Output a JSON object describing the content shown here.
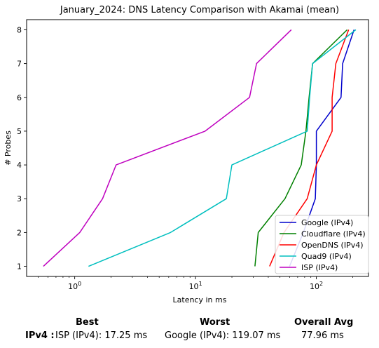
{
  "chart_data": {
    "type": "line",
    "title": "January_2024: DNS Latency Comparison with Akamai (mean)",
    "xlabel": "Latency in ms",
    "ylabel": "# Probes",
    "xscale": "log",
    "xlim": [
      0.4,
      270
    ],
    "ylim": [
      0.7,
      8.3
    ],
    "x_ticks": [
      1,
      10,
      100
    ],
    "x_tick_labels": [
      "10^0",
      "10^1",
      "10^2"
    ],
    "y_ticks": [
      1,
      2,
      3,
      4,
      5,
      6,
      7,
      8
    ],
    "y_tick_labels": [
      "1",
      "2",
      "3",
      "4",
      "5",
      "6",
      "7",
      "8"
    ],
    "grid": false,
    "legend_position": "lower-right",
    "series": [
      {
        "name": "Google (IPv4)",
        "color": "#0000cc",
        "points": [
          [
            60,
            1
          ],
          [
            78,
            2
          ],
          [
            98,
            3
          ],
          [
            100,
            4
          ],
          [
            100,
            5
          ],
          [
            160,
            6
          ],
          [
            165,
            7
          ],
          [
            205,
            8
          ]
        ]
      },
      {
        "name": "Cloudflare (IPv4)",
        "color": "#008000",
        "points": [
          [
            31,
            1
          ],
          [
            33,
            2
          ],
          [
            55,
            3
          ],
          [
            75,
            4
          ],
          [
            82,
            5
          ],
          [
            87,
            6
          ],
          [
            93,
            7
          ],
          [
            180,
            8
          ]
        ]
      },
      {
        "name": "OpenDNS (IPv4)",
        "color": "#ff0000",
        "points": [
          [
            41,
            1
          ],
          [
            54,
            2
          ],
          [
            84,
            3
          ],
          [
            100,
            4
          ],
          [
            135,
            5
          ],
          [
            135,
            6
          ],
          [
            145,
            7
          ],
          [
            185,
            8
          ]
        ]
      },
      {
        "name": "Quad9 (IPv4)",
        "color": "#00bfbf",
        "points": [
          [
            1.3,
            1
          ],
          [
            6.2,
            2
          ],
          [
            18,
            3
          ],
          [
            20,
            4
          ],
          [
            84,
            5
          ],
          [
            88,
            6
          ],
          [
            93,
            7
          ],
          [
            212,
            8
          ]
        ]
      },
      {
        "name": "ISP (IPv4)",
        "color": "#bf00bf",
        "points": [
          [
            0.55,
            1
          ],
          [
            1.1,
            2
          ],
          [
            1.7,
            3
          ],
          [
            2.2,
            4
          ],
          [
            12,
            5
          ],
          [
            28,
            6
          ],
          [
            32,
            7
          ],
          [
            62,
            8
          ]
        ]
      }
    ]
  },
  "summary": {
    "best_header": "Best",
    "worst_header": "Worst",
    "avg_header": "Overall Avg",
    "row_label": "IPv4 :",
    "best_value": "ISP (IPv4): 17.25 ms",
    "worst_value": "Google (IPv4): 119.07 ms",
    "avg_value": "77.96 ms"
  }
}
